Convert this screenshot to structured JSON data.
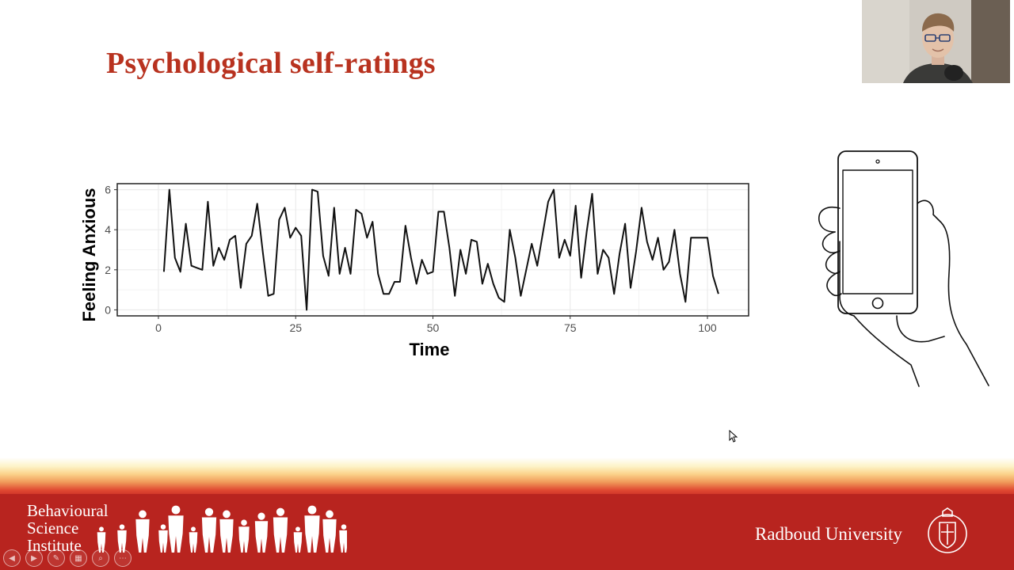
{
  "slide": {
    "title": "Psychological self-ratings"
  },
  "chart_data": {
    "type": "line",
    "title": "",
    "xlabel": "Time",
    "ylabel": "Feeling Anxious",
    "xlim": [
      -7.5,
      107.5
    ],
    "ylim": [
      -0.3,
      6.3
    ],
    "x_ticks": [
      0,
      25,
      50,
      75,
      100
    ],
    "y_ticks": [
      0,
      2,
      4,
      6
    ],
    "grid": true,
    "legend": "none",
    "line_color": "#111111",
    "x": [
      1,
      2,
      3,
      4,
      5,
      6,
      7,
      8,
      9,
      10,
      11,
      12,
      13,
      14,
      15,
      16,
      17,
      18,
      19,
      20,
      21,
      22,
      23,
      24,
      25,
      26,
      27,
      28,
      29,
      30,
      31,
      32,
      33,
      34,
      35,
      36,
      37,
      38,
      39,
      40,
      41,
      42,
      43,
      44,
      45,
      46,
      47,
      48,
      49,
      50,
      51,
      52,
      53,
      54,
      55,
      56,
      57,
      58,
      59,
      60,
      61,
      62,
      63,
      64,
      65,
      66,
      67,
      68,
      69,
      70,
      71,
      72,
      73,
      74,
      75,
      76,
      77,
      78,
      79,
      80,
      81,
      82,
      83,
      84,
      85,
      86,
      87,
      88,
      89,
      90,
      91,
      92,
      93,
      94,
      95,
      96,
      97,
      98,
      99,
      100,
      101,
      102
    ],
    "y": [
      1.9,
      6.0,
      2.6,
      1.9,
      4.3,
      2.2,
      2.1,
      2.0,
      5.4,
      2.2,
      3.1,
      2.5,
      3.5,
      3.7,
      1.1,
      3.3,
      3.7,
      5.3,
      2.9,
      0.7,
      0.8,
      4.5,
      5.1,
      3.6,
      4.1,
      3.7,
      0.0,
      6.0,
      5.9,
      2.7,
      1.7,
      5.1,
      1.8,
      3.1,
      1.8,
      5.0,
      4.8,
      3.6,
      4.4,
      1.8,
      0.8,
      0.8,
      1.4,
      1.4,
      4.2,
      2.6,
      1.3,
      2.5,
      1.8,
      1.9,
      4.9,
      4.9,
      3.1,
      0.7,
      3.0,
      1.8,
      3.5,
      3.4,
      1.3,
      2.3,
      1.3,
      0.6,
      0.4,
      4.0,
      2.6,
      0.7,
      2.0,
      3.3,
      2.2,
      3.8,
      5.4,
      6.0,
      2.6,
      3.5,
      2.7,
      5.2,
      1.6,
      3.9,
      5.8,
      1.8,
      3.0,
      2.6,
      0.8,
      2.8,
      4.3,
      1.1,
      2.9,
      5.1,
      3.4,
      2.5,
      3.6,
      2.0,
      2.4,
      4.0,
      1.8,
      0.4,
      3.6,
      3.6,
      3.6,
      3.6,
      1.7,
      0.8
    ]
  },
  "footer": {
    "institute_line1": "Behavioural",
    "institute_line2": "Science",
    "institute_line3": "Institute",
    "university": "Radboud University",
    "brand_red": "#b8241f"
  },
  "toolbar": {
    "icons": [
      "prev-icon",
      "next-icon",
      "pen-icon",
      "slides-icon",
      "zoom-icon",
      "more-icon"
    ],
    "prev": "◀",
    "next": "▶",
    "pen": "✎",
    "slides": "▦",
    "zoom": "⌕",
    "more": "⋯"
  },
  "colors": {
    "title_red": "#b8321f",
    "plot_border": "#222222",
    "grid": "#ebebeb"
  }
}
